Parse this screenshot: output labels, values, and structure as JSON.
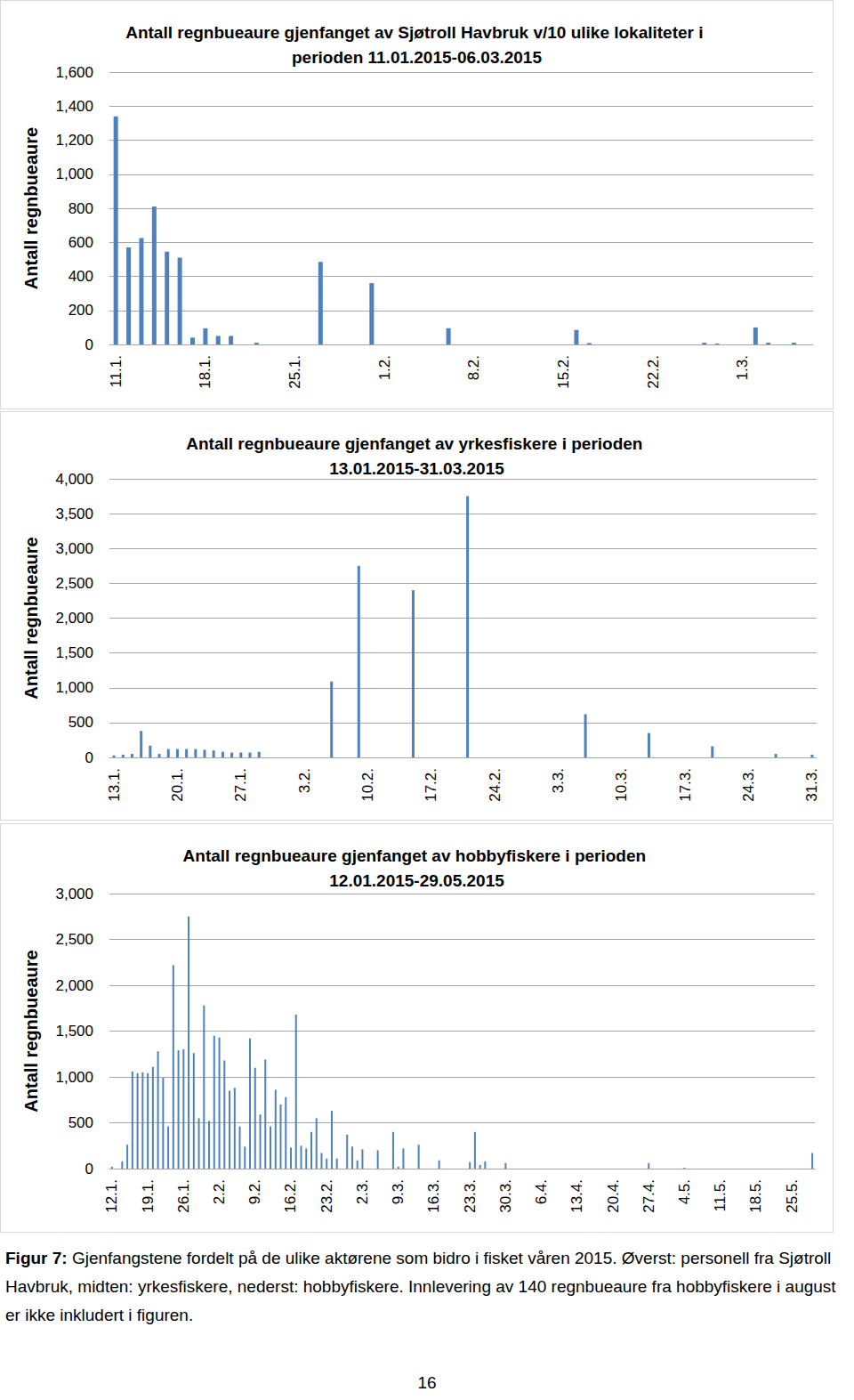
{
  "chart_data": [
    {
      "type": "bar",
      "title": "Antall regnbueaure gjenfanget av Sjøtroll Havbruk v/10 ulike lokaliteter i perioden 11.01.2015-06.03.2015",
      "y_label": "Antall regnbueaure",
      "categories": [
        "11.1.",
        null,
        null,
        null,
        null,
        null,
        null,
        "18.1.",
        null,
        null,
        null,
        null,
        null,
        null,
        "25.1.",
        null,
        null,
        null,
        null,
        null,
        null,
        "1.2.",
        null,
        null,
        null,
        null,
        null,
        null,
        "8.2.",
        null,
        null,
        null,
        null,
        null,
        null,
        "15.2.",
        null,
        null,
        null,
        null,
        null,
        null,
        "22.2.",
        null,
        null,
        null,
        null,
        null,
        null,
        "1.3.",
        null,
        null,
        null,
        null,
        null
      ],
      "values": [
        1340,
        570,
        625,
        810,
        545,
        510,
        40,
        95,
        50,
        50,
        0,
        10,
        0,
        0,
        0,
        0,
        485,
        0,
        0,
        0,
        360,
        0,
        0,
        0,
        0,
        0,
        95,
        0,
        0,
        0,
        0,
        0,
        0,
        0,
        0,
        0,
        85,
        8,
        0,
        0,
        0,
        0,
        0,
        0,
        0,
        0,
        10,
        5,
        0,
        0,
        100,
        10,
        0,
        10,
        0
      ],
      "color": "#4f81bd",
      "ylim": [
        0,
        1600
      ],
      "yticks": [
        0,
        200,
        400,
        600,
        800,
        1000,
        1200,
        1400,
        1600
      ],
      "grid": true
    },
    {
      "type": "bar",
      "title": "Antall regnbueaure gjenfanget av yrkesfiskere i perioden 13.01.2015-31.03.2015",
      "y_label": "Antall regnbueaure",
      "categories": [
        "13.1.",
        null,
        null,
        null,
        null,
        null,
        null,
        "20.1.",
        null,
        null,
        null,
        null,
        null,
        null,
        "27.1.",
        null,
        null,
        null,
        null,
        null,
        null,
        "3.2.",
        null,
        null,
        null,
        null,
        null,
        null,
        "10.2.",
        null,
        null,
        null,
        null,
        null,
        null,
        "17.2.",
        null,
        null,
        null,
        null,
        null,
        null,
        "24.2.",
        null,
        null,
        null,
        null,
        null,
        null,
        "3.3.",
        null,
        null,
        null,
        null,
        null,
        null,
        "10.3.",
        null,
        null,
        null,
        null,
        null,
        null,
        "17.3.",
        null,
        null,
        null,
        null,
        null,
        null,
        "24.3.",
        null,
        null,
        null,
        null,
        null,
        null,
        "31.3."
      ],
      "values": [
        30,
        40,
        50,
        380,
        170,
        50,
        120,
        120,
        120,
        120,
        110,
        100,
        80,
        70,
        70,
        70,
        80,
        0,
        0,
        0,
        0,
        0,
        0,
        0,
        1090,
        0,
        0,
        2750,
        0,
        0,
        0,
        0,
        0,
        2400,
        0,
        0,
        0,
        0,
        0,
        3750,
        0,
        0,
        0,
        0,
        0,
        0,
        0,
        0,
        0,
        0,
        0,
        0,
        620,
        0,
        0,
        0,
        0,
        0,
        0,
        350,
        0,
        0,
        0,
        0,
        0,
        0,
        160,
        0,
        0,
        0,
        0,
        0,
        0,
        50,
        0,
        0,
        0,
        40
      ],
      "color": "#4f81bd",
      "ylim": [
        0,
        4000
      ],
      "yticks": [
        0,
        500,
        1000,
        1500,
        2000,
        2500,
        3000,
        3500,
        4000
      ],
      "grid": true
    },
    {
      "type": "bar",
      "title": "Antall regnbueaure gjenfanget av hobbyfiskere i perioden 12.01.2015-29.05.2015",
      "y_label": "Antall regnbueaure",
      "categories": [
        "12.1.",
        null,
        null,
        null,
        null,
        null,
        null,
        "19.1.",
        null,
        null,
        null,
        null,
        null,
        null,
        "26.1.",
        null,
        null,
        null,
        null,
        null,
        null,
        "2.2.",
        null,
        null,
        null,
        null,
        null,
        null,
        "9.2.",
        null,
        null,
        null,
        null,
        null,
        null,
        "16.2.",
        null,
        null,
        null,
        null,
        null,
        null,
        "23.2.",
        null,
        null,
        null,
        null,
        null,
        null,
        "2.3.",
        null,
        null,
        null,
        null,
        null,
        null,
        "9.3.",
        null,
        null,
        null,
        null,
        null,
        null,
        "16.3.",
        null,
        null,
        null,
        null,
        null,
        null,
        "23.3.",
        null,
        null,
        null,
        null,
        null,
        null,
        "30.3.",
        null,
        null,
        null,
        null,
        null,
        null,
        "6.4.",
        null,
        null,
        null,
        null,
        null,
        null,
        "13.4.",
        null,
        null,
        null,
        null,
        null,
        null,
        "20.4.",
        null,
        null,
        null,
        null,
        null,
        null,
        "27.4.",
        null,
        null,
        null,
        null,
        null,
        null,
        "4.5.",
        null,
        null,
        null,
        null,
        null,
        null,
        "11.5.",
        null,
        null,
        null,
        null,
        null,
        null,
        "18.5.",
        null,
        null,
        null,
        null,
        null,
        null,
        "25.5.",
        null,
        null,
        null,
        null
      ],
      "values": [
        20,
        0,
        80,
        260,
        1060,
        1040,
        1050,
        1040,
        1110,
        1280,
        990,
        460,
        2220,
        1290,
        1300,
        2750,
        1260,
        550,
        1780,
        520,
        1450,
        1430,
        1180,
        850,
        880,
        460,
        240,
        1420,
        1100,
        590,
        1190,
        460,
        860,
        700,
        780,
        230,
        1680,
        250,
        220,
        400,
        550,
        170,
        110,
        630,
        110,
        0,
        370,
        240,
        90,
        210,
        0,
        0,
        200,
        0,
        0,
        400,
        20,
        220,
        0,
        0,
        260,
        0,
        0,
        0,
        90,
        0,
        0,
        0,
        0,
        0,
        70,
        400,
        40,
        80,
        0,
        0,
        0,
        60,
        0,
        0,
        0,
        0,
        0,
        0,
        0,
        0,
        0,
        0,
        0,
        0,
        0,
        0,
        0,
        0,
        0,
        0,
        0,
        0,
        0,
        0,
        0,
        0,
        0,
        0,
        0,
        60,
        0,
        0,
        0,
        0,
        0,
        0,
        10,
        0,
        0,
        0,
        0,
        0,
        0,
        0,
        0,
        0,
        0,
        0,
        0,
        0,
        0,
        0,
        0,
        0,
        0,
        0,
        0,
        0,
        0,
        0,
        0,
        170
      ],
      "color": "#4f81bd",
      "ylim": [
        0,
        3000
      ],
      "yticks": [
        0,
        500,
        1000,
        1500,
        2000,
        2500,
        3000
      ],
      "grid": true
    }
  ],
  "caption": {
    "label": "Figur 7:",
    "text": " Gjenfangstene fordelt på de ulike aktørene som bidro i fisket våren 2015. Øverst: personell fra Sjøtroll Havbruk, midten: yrkesfiskere, nederst: hobbyfiskere. Innlevering av 140 regnbueaure fra hobbyfiskere i august er ikke inkludert i figuren."
  },
  "page_number": "16"
}
